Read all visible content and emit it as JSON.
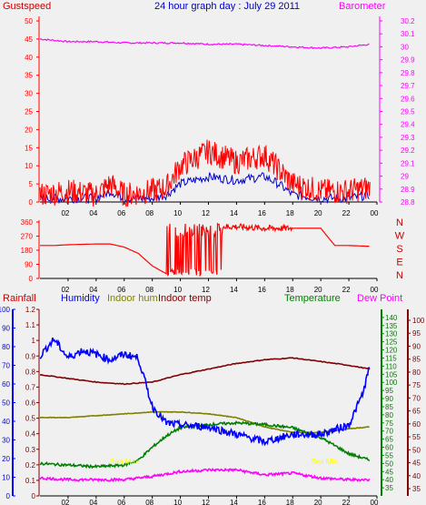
{
  "title": "24 hour graph day : July 29 2011",
  "colors": {
    "background": "#f0f0f0",
    "gust": "#ff0000",
    "wind": "#0000cc",
    "barometer": "#ff00ff",
    "direction": "#ff0000",
    "rainfall": "#cc0000",
    "humidity": "#0000ff",
    "indoor_hum": "#808000",
    "indoor_temp": "#800000",
    "temperature": "#008000",
    "dew_point": "#ff00ff",
    "annotation": "#ffff00",
    "axis_rain": "#0000ff",
    "axis_temp": "#008000",
    "axis_dew": "#800000",
    "grid": "#000000"
  },
  "chart_data": [
    {
      "type": "line",
      "title": "24 hour graph day : July 29 2011",
      "left_axis_label": "Gustspeed",
      "right_axis_label": "Barometer",
      "x_ticks": [
        "02",
        "04",
        "06",
        "08",
        "10",
        "12",
        "14",
        "16",
        "18",
        "20",
        "22",
        "00"
      ],
      "ylim_left": [
        0,
        50
      ],
      "yticks_left": [
        "0",
        "5",
        "10",
        "15",
        "20",
        "25",
        "30",
        "35",
        "40",
        "45",
        "50"
      ],
      "ylim_right": [
        28.8,
        30.2
      ],
      "yticks_right": [
        "28.8",
        "28.9",
        "29",
        "29.1",
        "29.2",
        "29.3",
        "29.4",
        "29.5",
        "29.6",
        "29.7",
        "29.8",
        "29.9",
        "30",
        "30.1",
        "30.2"
      ],
      "series": [
        {
          "name": "Gustspeed",
          "axis": "left",
          "x": [
            0,
            2,
            4,
            5,
            6,
            8,
            9,
            10,
            12,
            14,
            16,
            17,
            18,
            20,
            22,
            23.5
          ],
          "values": [
            2,
            3,
            2,
            5,
            2,
            3,
            4,
            10,
            14,
            11,
            13,
            9,
            5,
            3,
            3,
            4
          ]
        },
        {
          "axis": "left",
          "x": [
            0,
            2,
            4,
            5,
            6,
            8,
            9,
            10,
            12,
            14,
            16,
            17,
            18,
            20,
            22,
            23.5
          ],
          "values": [
            1,
            1,
            1,
            3,
            1,
            1,
            2,
            5,
            7,
            6,
            7,
            5,
            2,
            1,
            1,
            2
          ]
        },
        {
          "name": "Barometer",
          "axis": "right",
          "x": [
            0,
            1,
            2,
            4,
            6,
            8,
            10,
            12,
            14,
            16,
            18,
            20,
            22,
            23.5
          ],
          "values": [
            30.06,
            30.05,
            30.04,
            30.04,
            30.03,
            30.03,
            30.03,
            30.02,
            30.02,
            30.01,
            30.0,
            29.99,
            30.0,
            30.02
          ]
        }
      ]
    },
    {
      "type": "line",
      "right_axis_labels": [
        "N",
        "W",
        "S",
        "E",
        "N"
      ],
      "x_ticks": [
        "02",
        "04",
        "06",
        "08",
        "10",
        "12",
        "14",
        "16",
        "18",
        "20",
        "22",
        "00"
      ],
      "ylim": [
        0,
        360
      ],
      "yticks": [
        "0",
        "90",
        "180",
        "270",
        "360"
      ],
      "series": [
        {
          "x": [
            0,
            1,
            2,
            4,
            5,
            6,
            7,
            8,
            9,
            10,
            11,
            12,
            14,
            16,
            18,
            20,
            21,
            22,
            23.5
          ],
          "values": [
            210,
            210,
            215,
            220,
            220,
            200,
            160,
            80,
            30,
            50,
            280,
            330,
            330,
            320,
            320,
            320,
            210,
            210,
            205
          ]
        }
      ]
    },
    {
      "type": "line",
      "labels": [
        "Rainfall",
        "Humidity",
        "Indoor hum",
        "Indoor temp",
        "Temperature",
        "Dew Point"
      ],
      "x_ticks": [
        "02",
        "04",
        "06",
        "08",
        "10",
        "12",
        "14",
        "16",
        "18",
        "20",
        "22",
        "00"
      ],
      "ylim_humidity": [
        0,
        100
      ],
      "yticks_humidity": [
        "0",
        "10",
        "20",
        "30",
        "40",
        "50",
        "60",
        "70",
        "80",
        "90",
        "100"
      ],
      "ylim_rainfall": [
        0,
        1.2
      ],
      "yticks_rainfall": [
        "0",
        "0.1",
        "0.2",
        "0.3",
        "0.4",
        "0.5",
        "0.6",
        "0.7",
        "0.8",
        "0.9",
        "1",
        "1.1",
        "1.2"
      ],
      "ylim_temp": [
        30,
        145
      ],
      "yticks_temp": [
        "35",
        "40",
        "45",
        "50",
        "55",
        "60",
        "65",
        "70",
        "75",
        "80",
        "85",
        "90",
        "95",
        "100",
        "105",
        "110",
        "115",
        "120",
        "125",
        "130",
        "135",
        "140"
      ],
      "yticks_dew": [
        "35",
        "40",
        "45",
        "50",
        "55",
        "60",
        "65",
        "70",
        "75",
        "80",
        "85",
        "90",
        "95",
        "100"
      ],
      "annotations": [
        "Sea Max",
        "Sea Min"
      ],
      "series": [
        {
          "name": "Humidity",
          "x": [
            0,
            1,
            2,
            3,
            4,
            5,
            6,
            7,
            8,
            9,
            10,
            12,
            14,
            16,
            18,
            20,
            22,
            23,
            23.5
          ],
          "values": [
            75,
            84,
            74,
            78,
            76,
            73,
            76,
            74,
            48,
            39,
            38,
            37,
            33,
            29,
            33,
            33,
            38,
            55,
            70
          ]
        },
        {
          "name": "Indoor hum",
          "x": [
            0,
            2,
            4,
            6,
            8,
            10,
            12,
            14,
            16,
            18,
            20,
            22,
            23.5
          ],
          "values": [
            42,
            42,
            43,
            44,
            45,
            45,
            44,
            42,
            37,
            34,
            34,
            36,
            37
          ]
        },
        {
          "name": "Indoor temp",
          "x": [
            0,
            2,
            4,
            6,
            8,
            10,
            12,
            14,
            16,
            18,
            20,
            22,
            23.5
          ],
          "values": [
            95,
            93,
            91,
            90,
            91,
            95,
            98,
            101,
            103,
            104,
            102,
            100,
            98
          ]
        },
        {
          "name": "Temperature",
          "x": [
            0,
            2,
            4,
            6,
            7,
            8,
            9,
            10,
            12,
            14,
            16,
            18,
            20,
            22,
            23.5
          ],
          "values": [
            50,
            49,
            48,
            49,
            52,
            60,
            67,
            72,
            74,
            75,
            74,
            72,
            66,
            56,
            52
          ]
        },
        {
          "name": "Dew Point",
          "x": [
            0,
            2,
            4,
            6,
            8,
            10,
            12,
            14,
            16,
            18,
            20,
            22,
            23.5
          ],
          "values": [
            41,
            40,
            40,
            40,
            42,
            45,
            46,
            46,
            43,
            44,
            41,
            40,
            40
          ]
        }
      ]
    }
  ]
}
